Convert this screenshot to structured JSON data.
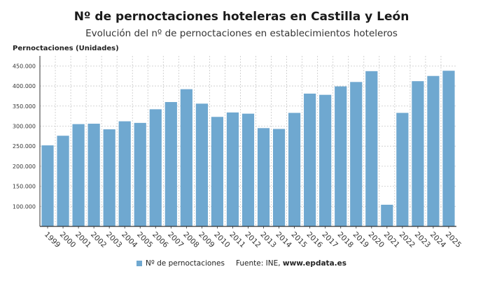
{
  "title": "Nº de pernoctaciones hoteleras en Castilla y León",
  "subtitle": "Evolución del nº de pernoctaciones en establecimientos hoteleros",
  "colors": {
    "bar": "#6fa8d0",
    "grid": "#c8c8c8",
    "axis": "#333333"
  },
  "legend": {
    "series_label": "Nº de pernoctaciones",
    "source_label": "Fuente: INE, ",
    "source_site": "www.epdata.es"
  },
  "chart_data": {
    "type": "bar",
    "ylabel": "Pernoctaciones (Unidades)",
    "xlabel": "",
    "ylim": [
      50000,
      475000
    ],
    "yticks": [
      100000,
      150000,
      200000,
      250000,
      300000,
      350000,
      400000,
      450000
    ],
    "ytick_labels": [
      "100.000",
      "150.000",
      "200.000",
      "250.000",
      "300.000",
      "350.000",
      "400.000",
      "450.000"
    ],
    "grid": true,
    "legend_position": "bottom",
    "categories": [
      "1999",
      "2000",
      "2001",
      "2002",
      "2003",
      "2004",
      "2005",
      "2006",
      "2007",
      "2008",
      "2009",
      "2010",
      "2011",
      "2012",
      "2013",
      "2014",
      "2015",
      "2016",
      "2017",
      "2018",
      "2019",
      "2020",
      "2021",
      "2022",
      "2023",
      "2024",
      "2025"
    ],
    "series": [
      {
        "name": "Nº de pernoctaciones",
        "values": [
          252000,
          276000,
          305000,
          306000,
          292000,
          312000,
          308000,
          342000,
          360000,
          392000,
          356000,
          323000,
          334000,
          331000,
          295000,
          293000,
          333000,
          381000,
          378000,
          399000,
          410000,
          437000,
          104000,
          333000,
          412000,
          425000,
          438000
        ]
      }
    ]
  }
}
